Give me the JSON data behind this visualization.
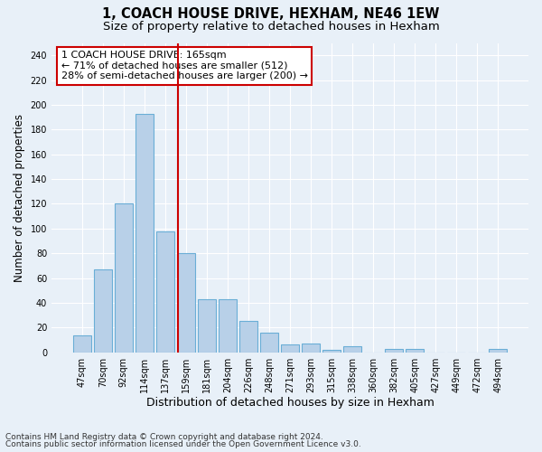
{
  "title1": "1, COACH HOUSE DRIVE, HEXHAM, NE46 1EW",
  "title2": "Size of property relative to detached houses in Hexham",
  "xlabel": "Distribution of detached houses by size in Hexham",
  "ylabel": "Number of detached properties",
  "categories": [
    "47sqm",
    "70sqm",
    "92sqm",
    "114sqm",
    "137sqm",
    "159sqm",
    "181sqm",
    "204sqm",
    "226sqm",
    "248sqm",
    "271sqm",
    "293sqm",
    "315sqm",
    "338sqm",
    "360sqm",
    "382sqm",
    "405sqm",
    "427sqm",
    "449sqm",
    "472sqm",
    "494sqm"
  ],
  "values": [
    14,
    67,
    120,
    193,
    98,
    80,
    43,
    43,
    25,
    16,
    6,
    7,
    2,
    5,
    0,
    3,
    3,
    0,
    0,
    0,
    3
  ],
  "bar_color": "#b8d0e8",
  "bar_edge_color": "#6aaed6",
  "vline_color": "#cc0000",
  "annotation_text": "1 COACH HOUSE DRIVE: 165sqm\n← 71% of detached houses are smaller (512)\n28% of semi-detached houses are larger (200) →",
  "annotation_box_color": "#ffffff",
  "annotation_box_edge_color": "#cc0000",
  "ylim": [
    0,
    250
  ],
  "yticks": [
    0,
    20,
    40,
    60,
    80,
    100,
    120,
    140,
    160,
    180,
    200,
    220,
    240
  ],
  "footer1": "Contains HM Land Registry data © Crown copyright and database right 2024.",
  "footer2": "Contains public sector information licensed under the Open Government Licence v3.0.",
  "title_fontsize": 10.5,
  "subtitle_fontsize": 9.5,
  "tick_fontsize": 7,
  "ylabel_fontsize": 8.5,
  "xlabel_fontsize": 9,
  "annotation_fontsize": 8,
  "footer_fontsize": 6.5,
  "background_color": "#e8f0f8",
  "grid_color": "#ffffff",
  "vline_x_index": 4.62
}
